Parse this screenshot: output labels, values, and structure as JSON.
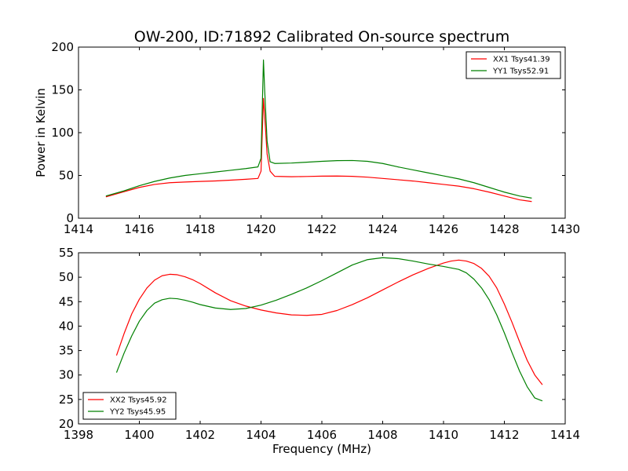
{
  "title": "OW-200, ID:71892 Calibrated On-source spectrum",
  "chart_data": [
    {
      "type": "line",
      "ylabel": "Power in Kelvin",
      "xlabel": "",
      "xlim": [
        1414,
        1430
      ],
      "ylim": [
        0,
        200
      ],
      "xticks": [
        1414,
        1416,
        1418,
        1420,
        1422,
        1424,
        1426,
        1428,
        1430
      ],
      "yticks": [
        0,
        50,
        100,
        150,
        200
      ],
      "legend": "top-right",
      "series": [
        {
          "name": "XX1 Tsys41.39",
          "color": "#ff0000",
          "x": [
            1414.9,
            1415.5,
            1416,
            1416.5,
            1417,
            1417.5,
            1418,
            1418.5,
            1419,
            1419.5,
            1419.9,
            1420.0,
            1420.08,
            1420.12,
            1420.2,
            1420.3,
            1420.45,
            1421,
            1421.5,
            1422,
            1422.5,
            1423,
            1423.5,
            1424,
            1424.5,
            1425,
            1425.5,
            1426,
            1426.5,
            1427,
            1427.5,
            1428,
            1428.5,
            1428.9
          ],
          "y": [
            25,
            31,
            36,
            39.5,
            41.5,
            42.3,
            43,
            43.6,
            44.5,
            45.5,
            46.5,
            55,
            140,
            120,
            75,
            55,
            49,
            48.5,
            48.8,
            49.2,
            49.3,
            49,
            48,
            46.5,
            45,
            43.5,
            41.5,
            39.5,
            37.5,
            34.5,
            30.5,
            26,
            21.5,
            19.5
          ]
        },
        {
          "name": "YY1 Tsys52.91",
          "color": "#008000",
          "x": [
            1414.9,
            1415.5,
            1416,
            1416.5,
            1417,
            1417.5,
            1418,
            1418.5,
            1419,
            1419.5,
            1419.9,
            1420.0,
            1420.08,
            1420.12,
            1420.2,
            1420.3,
            1420.45,
            1421,
            1421.5,
            1422,
            1422.5,
            1423,
            1423.5,
            1424,
            1424.5,
            1425,
            1425.5,
            1426,
            1426.5,
            1427,
            1427.5,
            1428,
            1428.5,
            1428.9
          ],
          "y": [
            26,
            32,
            38,
            43,
            47,
            50,
            52,
            54,
            56,
            58,
            60,
            70,
            185,
            150,
            90,
            66,
            64,
            64.5,
            65.5,
            66.5,
            67.3,
            67.5,
            66.5,
            64,
            60,
            56.5,
            53,
            49.5,
            46,
            41.5,
            36,
            30.5,
            26,
            23.5
          ]
        }
      ]
    },
    {
      "type": "line",
      "ylabel": "",
      "xlabel": "Frequency (MHz)",
      "xlim": [
        1398,
        1414
      ],
      "ylim": [
        20,
        55
      ],
      "xticks": [
        1398,
        1400,
        1402,
        1404,
        1406,
        1408,
        1410,
        1412,
        1414
      ],
      "yticks": [
        20,
        25,
        30,
        35,
        40,
        45,
        50,
        55
      ],
      "legend": "bottom-left",
      "series": [
        {
          "name": "XX2 Tsys45.92",
          "color": "#ff0000",
          "x": [
            1399.25,
            1399.5,
            1399.75,
            1400,
            1400.25,
            1400.5,
            1400.75,
            1401,
            1401.25,
            1401.5,
            1401.75,
            1402,
            1402.5,
            1403,
            1403.5,
            1404,
            1404.5,
            1405,
            1405.5,
            1406,
            1406.5,
            1407,
            1407.5,
            1408,
            1408.5,
            1409,
            1409.5,
            1410,
            1410.25,
            1410.5,
            1410.75,
            1411,
            1411.25,
            1411.5,
            1411.75,
            1412,
            1412.25,
            1412.5,
            1412.75,
            1413,
            1413.25
          ],
          "y": [
            34,
            38.5,
            42.5,
            45.5,
            47.8,
            49.4,
            50.3,
            50.6,
            50.5,
            50.1,
            49.5,
            48.7,
            46.8,
            45.2,
            44.1,
            43.3,
            42.7,
            42.3,
            42.2,
            42.4,
            43.2,
            44.4,
            45.8,
            47.4,
            49,
            50.5,
            51.8,
            52.9,
            53.3,
            53.5,
            53.3,
            52.8,
            51.8,
            50.2,
            47.8,
            44.5,
            40.8,
            36.8,
            33,
            30,
            28
          ]
        },
        {
          "name": "YY2 Tsys45.95",
          "color": "#008000",
          "x": [
            1399.25,
            1399.5,
            1399.75,
            1400,
            1400.25,
            1400.5,
            1400.75,
            1401,
            1401.25,
            1401.5,
            1401.75,
            1402,
            1402.5,
            1403,
            1403.5,
            1404,
            1404.5,
            1405,
            1405.5,
            1406,
            1406.5,
            1407,
            1407.5,
            1408,
            1408.5,
            1409,
            1409.5,
            1410,
            1410.5,
            1410.75,
            1411,
            1411.25,
            1411.5,
            1411.75,
            1412,
            1412.25,
            1412.5,
            1412.75,
            1413,
            1413.25
          ],
          "y": [
            30.5,
            34.5,
            38,
            41,
            43.2,
            44.7,
            45.4,
            45.7,
            45.6,
            45.3,
            44.9,
            44.4,
            43.7,
            43.4,
            43.6,
            44.3,
            45.3,
            46.5,
            47.8,
            49.3,
            50.9,
            52.5,
            53.6,
            54,
            53.8,
            53.3,
            52.7,
            52.2,
            51.6,
            50.9,
            49.6,
            47.8,
            45.4,
            42.3,
            38.6,
            34.6,
            30.8,
            27.6,
            25.3,
            24.7
          ]
        }
      ]
    }
  ]
}
